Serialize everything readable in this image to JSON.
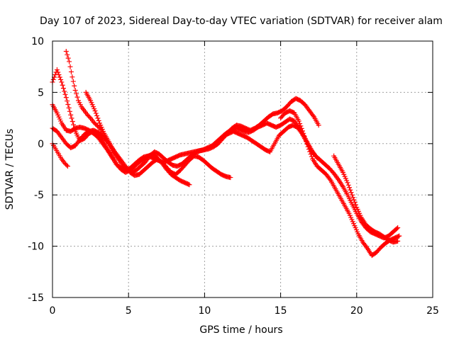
{
  "chart_data": {
    "type": "scatter",
    "title": "Day 107 of 2023, Sidereal Day-to-day VTEC variation (SDTVAR) for receiver alam",
    "xlabel": "GPS time / hours",
    "ylabel": "SDTVAR / TECUs",
    "xlim": [
      0,
      25
    ],
    "ylim": [
      -15,
      10
    ],
    "xticks": [
      0,
      5,
      10,
      15,
      20,
      25
    ],
    "yticks": [
      -15,
      -10,
      -5,
      0,
      5,
      10
    ],
    "grid": true,
    "marker": "+",
    "color": "#ff0000",
    "series": [
      {
        "name": "track-1",
        "x": [
          0.0,
          0.3,
          0.6,
          0.9,
          1.2,
          1.5,
          1.8,
          2.1,
          2.4,
          2.7,
          3.0,
          3.3,
          3.6,
          3.9,
          4.2,
          4.5,
          4.8,
          5.1,
          5.4,
          5.7,
          6.0,
          6.3,
          6.6,
          6.9,
          7.2,
          7.5,
          7.8,
          8.1,
          8.4,
          8.7,
          9.0
        ],
        "y": [
          6.0,
          7.2,
          6.0,
          4.5,
          2.8,
          1.2,
          0.3,
          0.5,
          1.0,
          1.2,
          0.8,
          0.2,
          -0.5,
          -1.2,
          -2.0,
          -2.5,
          -2.8,
          -2.6,
          -2.2,
          -1.8,
          -1.5,
          -1.2,
          -1.0,
          -1.4,
          -1.9,
          -2.5,
          -3.0,
          -3.3,
          -3.6,
          -3.8,
          -4.0
        ]
      },
      {
        "name": "track-2",
        "x": [
          0.0,
          0.2,
          0.4,
          0.6,
          0.8,
          1.0
        ],
        "y": [
          0.0,
          -0.5,
          -1.0,
          -1.5,
          -1.9,
          -2.2
        ]
      },
      {
        "name": "track-3",
        "x": [
          0.0,
          0.3,
          0.6,
          0.9,
          1.2,
          1.5,
          1.8,
          2.1,
          2.4,
          2.7,
          3.0,
          3.3,
          3.6,
          3.9,
          4.2,
          4.5,
          4.8,
          5.1,
          5.4,
          5.7,
          6.0,
          6.3,
          6.6,
          6.9,
          7.2,
          7.5,
          7.8,
          8.1,
          8.4,
          8.7,
          9.0,
          9.3,
          9.6,
          9.9,
          10.2,
          10.5,
          10.8,
          11.1,
          11.4,
          11.7,
          12.0,
          12.3,
          12.6,
          12.9,
          13.2,
          13.5,
          13.8,
          14.1,
          14.4,
          14.7,
          15.0,
          15.3,
          15.6,
          15.9,
          16.2,
          16.5,
          16.8,
          17.1,
          17.4
        ],
        "y": [
          3.8,
          3.0,
          2.0,
          1.3,
          1.2,
          1.5,
          1.6,
          1.5,
          1.3,
          1.0,
          0.6,
          0.0,
          -0.6,
          -1.3,
          -2.0,
          -2.4,
          -2.6,
          -2.4,
          -2.0,
          -1.6,
          -1.3,
          -1.2,
          -1.4,
          -1.6,
          -1.8,
          -1.7,
          -1.5,
          -1.3,
          -1.1,
          -1.0,
          -0.9,
          -0.8,
          -0.7,
          -0.6,
          -0.4,
          -0.2,
          0.2,
          0.6,
          1.0,
          1.3,
          1.5,
          1.4,
          1.2,
          1.1,
          1.3,
          1.6,
          1.8,
          2.0,
          1.8,
          1.6,
          1.8,
          2.1,
          2.4,
          2.2,
          1.6,
          0.8,
          0.0,
          -0.8,
          -1.4
        ]
      },
      {
        "name": "track-4",
        "x": [
          0.9,
          1.1,
          1.3,
          1.5,
          1.7,
          1.9,
          2.1,
          2.3,
          2.5,
          2.7,
          2.9,
          3.1,
          3.3,
          3.5,
          3.7,
          3.9,
          4.1,
          4.3
        ],
        "y": [
          9.0,
          8.0,
          6.5,
          5.2,
          4.2,
          3.6,
          3.2,
          2.8,
          2.5,
          2.1,
          1.8,
          1.5,
          1.0,
          0.5,
          0.0,
          -0.5,
          -1.0,
          -1.4
        ]
      },
      {
        "name": "track-5",
        "x": [
          2.2,
          2.5,
          2.8,
          3.1,
          3.4,
          3.7,
          4.0,
          4.3,
          4.6,
          4.9,
          5.2,
          5.5,
          5.8,
          6.1,
          6.4,
          6.7,
          7.0,
          7.3,
          7.6,
          7.9,
          8.2,
          8.5,
          8.8,
          9.1,
          9.4,
          9.7,
          10.0,
          10.3,
          10.6,
          10.9,
          11.2,
          11.5,
          11.8,
          12.1,
          12.4,
          12.7,
          13.0,
          13.3,
          13.6,
          13.9,
          14.2,
          14.5,
          14.8,
          15.1,
          15.4,
          15.7,
          16.0,
          16.3,
          16.6,
          16.9,
          17.2,
          17.5
        ],
        "y": [
          5.0,
          4.2,
          3.2,
          2.0,
          1.0,
          0.2,
          -0.6,
          -1.4,
          -2.1,
          -2.5,
          -2.8,
          -2.6,
          -2.2,
          -1.8,
          -1.2,
          -0.8,
          -1.0,
          -1.4,
          -1.8,
          -2.1,
          -2.2,
          -2.0,
          -1.6,
          -1.2,
          -0.9,
          -0.7,
          -0.6,
          -0.5,
          -0.3,
          0.0,
          0.5,
          1.0,
          1.5,
          1.8,
          1.7,
          1.5,
          1.3,
          1.5,
          1.8,
          2.2,
          2.6,
          2.9,
          3.0,
          3.2,
          3.6,
          4.1,
          4.4,
          4.2,
          3.8,
          3.2,
          2.6,
          1.8
        ]
      },
      {
        "name": "track-6",
        "x": [
          0.0,
          0.3,
          0.6,
          0.9,
          1.2,
          1.5,
          1.8,
          2.1,
          2.4,
          2.7,
          3.0,
          3.3,
          3.6,
          3.9,
          4.2,
          4.5,
          4.8,
          5.1,
          5.4,
          5.7,
          6.0,
          6.3,
          6.6,
          6.9,
          7.2,
          7.5,
          7.8,
          8.1,
          8.4,
          8.7,
          9.0,
          9.3,
          9.6,
          9.9,
          10.2,
          10.5,
          10.8,
          11.1,
          11.4,
          11.7
        ],
        "y": [
          1.5,
          1.2,
          0.6,
          0.0,
          -0.4,
          -0.2,
          0.4,
          0.9,
          1.2,
          1.3,
          1.1,
          0.7,
          0.2,
          -0.4,
          -1.0,
          -1.6,
          -2.2,
          -2.8,
          -3.1,
          -3.0,
          -2.6,
          -2.2,
          -1.8,
          -1.5,
          -1.8,
          -2.3,
          -2.8,
          -3.0,
          -2.6,
          -2.1,
          -1.6,
          -1.2,
          -1.3,
          -1.6,
          -2.0,
          -2.4,
          -2.7,
          -3.0,
          -3.2,
          -3.3
        ]
      },
      {
        "name": "track-7",
        "x": [
          11.0,
          11.3,
          11.6,
          11.9,
          12.2,
          12.5,
          12.8,
          13.1,
          13.4,
          13.7,
          14.0,
          14.3,
          14.6,
          14.9,
          15.2,
          15.5,
          15.8,
          16.1,
          16.4,
          16.7,
          17.0,
          17.3,
          17.6,
          17.9,
          18.2,
          18.5,
          18.8,
          19.1,
          19.4,
          19.7,
          20.0,
          20.3,
          20.6,
          20.9,
          21.2,
          21.5,
          21.8,
          22.1,
          22.4,
          22.7
        ],
        "y": [
          0.4,
          0.8,
          1.0,
          1.2,
          1.0,
          0.8,
          0.6,
          0.3,
          0.0,
          -0.3,
          -0.6,
          -0.8,
          0.0,
          0.8,
          1.2,
          1.6,
          1.8,
          1.6,
          1.0,
          0.2,
          -0.6,
          -1.2,
          -1.6,
          -2.0,
          -2.4,
          -2.9,
          -3.5,
          -4.2,
          -5.0,
          -5.9,
          -6.8,
          -7.6,
          -8.2,
          -8.6,
          -8.8,
          -9.0,
          -9.2,
          -9.0,
          -8.6,
          -8.2
        ]
      },
      {
        "name": "track-8",
        "x": [
          15.0,
          15.3,
          15.6,
          15.9,
          16.2,
          16.5,
          16.8,
          17.1,
          17.4,
          17.7,
          18.0,
          18.3,
          18.6,
          18.9,
          19.2,
          19.5,
          19.8,
          20.1,
          20.4,
          20.7,
          21.0,
          21.3,
          21.6,
          21.9,
          22.2,
          22.5,
          22.8
        ],
        "y": [
          2.5,
          3.0,
          3.2,
          3.0,
          2.2,
          1.0,
          -0.3,
          -1.5,
          -2.2,
          -2.6,
          -3.0,
          -3.6,
          -4.4,
          -5.2,
          -6.0,
          -6.8,
          -7.8,
          -8.8,
          -9.6,
          -10.2,
          -10.9,
          -10.6,
          -10.1,
          -9.7,
          -9.4,
          -9.2,
          -9.0
        ]
      },
      {
        "name": "track-9",
        "x": [
          18.5,
          18.8,
          19.1,
          19.4,
          19.7,
          20.0,
          20.3,
          20.6,
          20.9,
          21.2,
          21.5,
          21.8,
          22.1,
          22.4,
          22.7
        ],
        "y": [
          -1.2,
          -2.0,
          -2.8,
          -3.8,
          -5.0,
          -6.2,
          -7.2,
          -7.9,
          -8.3,
          -8.6,
          -8.8,
          -9.1,
          -9.4,
          -9.6,
          -9.5
        ]
      }
    ]
  }
}
